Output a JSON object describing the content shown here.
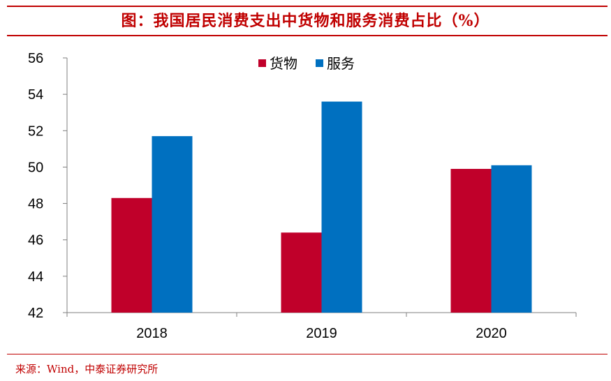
{
  "title": "图：我国居民消费支出中货物和服务消费占比（%）",
  "source": "来源：Wind，中泰证券研究所",
  "colors": {
    "accent": "#c00000",
    "goods": "#c0002a",
    "services": "#0070c0"
  },
  "chart_data": {
    "type": "bar",
    "categories": [
      "2018",
      "2019",
      "2020"
    ],
    "series": [
      {
        "name": "货物",
        "values": [
          48.3,
          46.4,
          49.9
        ]
      },
      {
        "name": "服务",
        "values": [
          51.7,
          53.6,
          50.1
        ]
      }
    ],
    "ylim": [
      42,
      56
    ],
    "yticks": [
      42,
      44,
      46,
      48,
      50,
      52,
      54,
      56
    ],
    "legend_position": "top-center",
    "grid": false,
    "xlabel": "",
    "ylabel": ""
  }
}
